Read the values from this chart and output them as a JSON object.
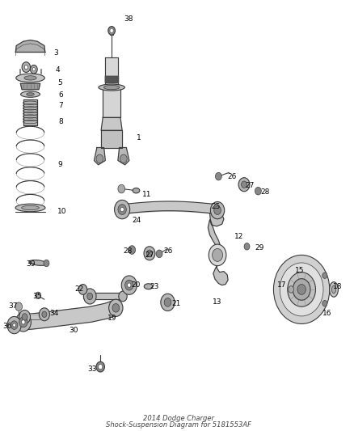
{
  "bg_color": "#ffffff",
  "line_color": "#3a3a3a",
  "label_color": "#000000",
  "label_fontsize": 6.5,
  "title_fontsize": 6.0,
  "fig_width": 4.38,
  "fig_height": 5.33,
  "dpi": 100,
  "title_line1": "2014 Dodge Charger",
  "title_line2": "Shock-Suspension Diagram for 5181553AF",
  "label_positions": {
    "38": [
      0.345,
      0.957,
      "left"
    ],
    "3": [
      0.145,
      0.878,
      "left"
    ],
    "4": [
      0.15,
      0.838,
      "left"
    ],
    "5": [
      0.155,
      0.808,
      "left"
    ],
    "6": [
      0.158,
      0.78,
      "left"
    ],
    "7": [
      0.158,
      0.755,
      "left"
    ],
    "8": [
      0.158,
      0.718,
      "left"
    ],
    "9": [
      0.155,
      0.618,
      "left"
    ],
    "10": [
      0.155,
      0.51,
      "left"
    ],
    "1": [
      0.38,
      0.68,
      "left"
    ],
    "11": [
      0.398,
      0.548,
      "left"
    ],
    "26a": [
      0.64,
      0.59,
      "left"
    ],
    "27a": [
      0.69,
      0.57,
      "left"
    ],
    "28a": [
      0.735,
      0.555,
      "left"
    ],
    "25": [
      0.595,
      0.52,
      "left"
    ],
    "24": [
      0.395,
      0.488,
      "right"
    ],
    "28b": [
      0.37,
      0.418,
      "right"
    ],
    "27b": [
      0.432,
      0.408,
      "right"
    ],
    "26b": [
      0.458,
      0.418,
      "left"
    ],
    "29": [
      0.718,
      0.425,
      "left"
    ],
    "12": [
      0.66,
      0.452,
      "left"
    ],
    "39": [
      0.092,
      0.388,
      "right"
    ],
    "22": [
      0.23,
      0.328,
      "right"
    ],
    "20": [
      0.365,
      0.338,
      "left"
    ],
    "23": [
      0.42,
      0.335,
      "left"
    ],
    "21": [
      0.482,
      0.295,
      "left"
    ],
    "35": [
      0.112,
      0.312,
      "right"
    ],
    "37": [
      0.042,
      0.29,
      "right"
    ],
    "34": [
      0.132,
      0.272,
      "left"
    ],
    "19": [
      0.298,
      0.262,
      "left"
    ],
    "30": [
      0.215,
      0.232,
      "right"
    ],
    "36": [
      0.025,
      0.242,
      "right"
    ],
    "13": [
      0.598,
      0.298,
      "left"
    ],
    "33": [
      0.268,
      0.142,
      "right"
    ],
    "15": [
      0.832,
      0.372,
      "left"
    ],
    "17": [
      0.782,
      0.338,
      "left"
    ],
    "18": [
      0.942,
      0.335,
      "left"
    ],
    "16": [
      0.912,
      0.272,
      "left"
    ]
  }
}
